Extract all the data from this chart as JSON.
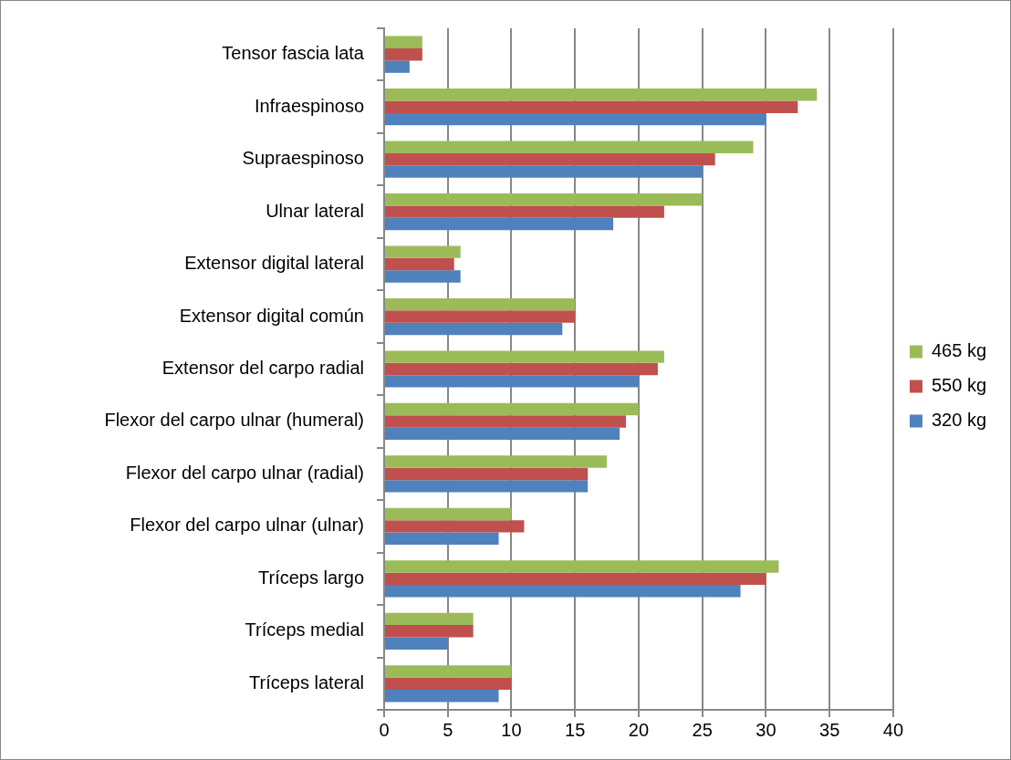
{
  "chart_data": {
    "type": "bar",
    "orientation": "horizontal",
    "categories": [
      "Tensor fascia lata",
      "Infraespinoso",
      "Supraespinoso",
      "Ulnar lateral",
      "Extensor digital lateral",
      "Extensor digital común",
      "Extensor del carpo radial",
      "Flexor del carpo ulnar (humeral)",
      "Flexor del carpo ulnar (radial)",
      "Flexor del carpo ulnar (ulnar)",
      "Tríceps largo",
      "Tríceps medial",
      "Tríceps lateral"
    ],
    "series": [
      {
        "name": "465 kg",
        "color": "#9bbb59",
        "values": [
          3,
          34,
          29,
          25,
          6,
          15,
          22,
          20,
          17.5,
          10,
          31,
          7,
          10
        ]
      },
      {
        "name": "550 kg",
        "color": "#c0504d",
        "values": [
          3,
          32.5,
          26,
          22,
          5.5,
          15,
          21.5,
          19,
          16,
          11,
          30,
          7,
          10
        ]
      },
      {
        "name": "320 kg",
        "color": "#4f81bd",
        "values": [
          2,
          30,
          25,
          18,
          6,
          14,
          20,
          18.5,
          16,
          9,
          28,
          5,
          9
        ]
      }
    ],
    "xlim": [
      0,
      40
    ],
    "xticks": [
      0,
      5,
      10,
      15,
      20,
      25,
      30,
      35,
      40
    ],
    "grid": "x",
    "legend": "right"
  }
}
